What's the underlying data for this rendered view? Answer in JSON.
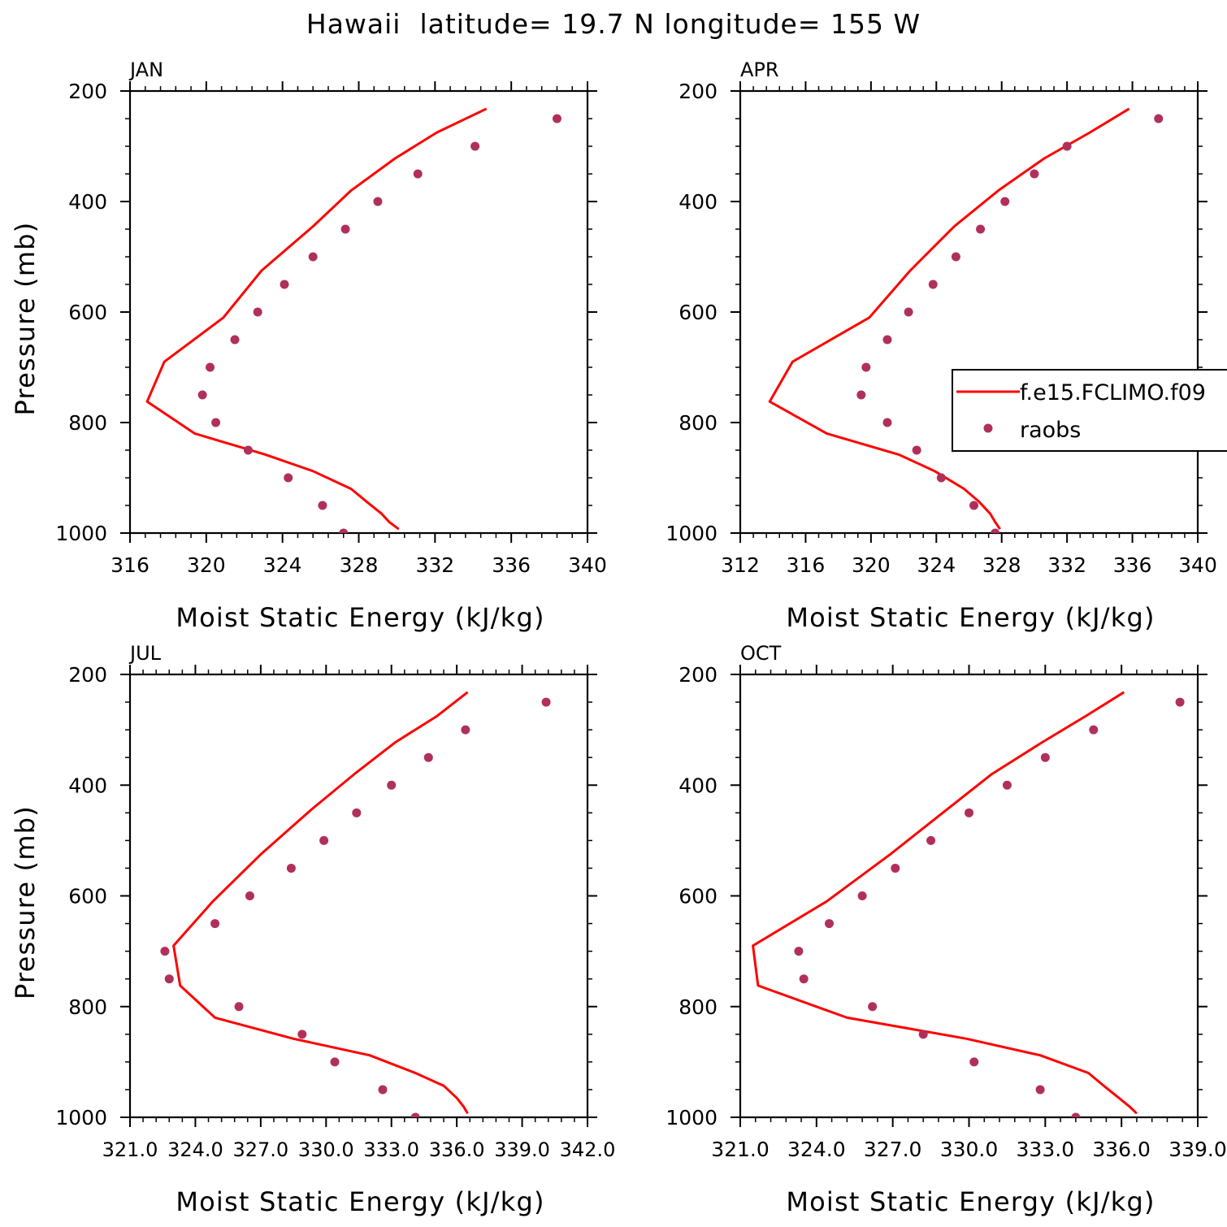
{
  "title": "Hawaii  latitude= 19.7 N longitude= 155 W",
  "colors": {
    "model": "#ff0000",
    "obs": "#b0305a",
    "axis": "#000000"
  },
  "legend": {
    "model": "f.e15.FCLIMO.f09",
    "obs": "raobs"
  },
  "chart_data": [
    {
      "type": "line",
      "panel": "JAN",
      "xlabel": "Moist Static Energy (kJ/kg)",
      "ylabel": "Pressure (mb)",
      "xlim": [
        316,
        340
      ],
      "ylim": [
        200,
        1000
      ],
      "xticks": [
        316,
        320,
        324,
        328,
        332,
        336,
        340
      ],
      "xtick_labels": [
        "316",
        "320",
        "324",
        "328",
        "332",
        "336",
        "340"
      ],
      "yticks": [
        200,
        400,
        600,
        800,
        1000
      ],
      "ytick_labels": [
        "200",
        "400",
        "600",
        "800",
        "1000"
      ],
      "series": [
        {
          "name": "f.e15.FCLIMO.f09",
          "style": "line",
          "x": [
            334.7,
            332.1,
            329.9,
            327.6,
            325.6,
            322.9,
            320.9,
            317.8,
            316.9,
            319.4,
            323.1,
            325.6,
            327.6,
            328.4,
            329.2,
            329.6,
            330.1
          ],
          "y": [
            232,
            275,
            322,
            380,
            445,
            525,
            610,
            690,
            762,
            820,
            858,
            888,
            920,
            943,
            965,
            980,
            993
          ]
        },
        {
          "name": "raobs",
          "style": "markers",
          "x": [
            338.4,
            334.1,
            331.1,
            329.0,
            327.3,
            325.6,
            324.1,
            322.7,
            321.5,
            320.2,
            319.8,
            320.5,
            322.2,
            324.3,
            326.1,
            327.2
          ],
          "y": [
            250,
            300,
            350,
            400,
            450,
            500,
            550,
            600,
            650,
            700,
            750,
            800,
            850,
            900,
            950,
            1000
          ]
        }
      ]
    },
    {
      "type": "line",
      "panel": "APR",
      "xlabel": "Moist Static Energy (kJ/kg)",
      "ylabel": "",
      "xlim": [
        312,
        340
      ],
      "ylim": [
        200,
        1000
      ],
      "xticks": [
        312,
        316,
        320,
        324,
        328,
        332,
        336,
        340
      ],
      "xtick_labels": [
        "312",
        "316",
        "320",
        "324",
        "328",
        "332",
        "336",
        "340"
      ],
      "yticks": [
        200,
        400,
        600,
        800,
        1000
      ],
      "ytick_labels": [
        "200",
        "400",
        "600",
        "800",
        "1000"
      ],
      "series": [
        {
          "name": "f.e15.FCLIMO.f09",
          "style": "line",
          "x": [
            335.8,
            333.4,
            330.6,
            327.8,
            325.1,
            322.4,
            319.9,
            315.2,
            313.8,
            317.3,
            321.7,
            323.9,
            325.7,
            326.6,
            327.3,
            327.6,
            327.9
          ],
          "y": [
            232,
            275,
            322,
            380,
            445,
            525,
            610,
            690,
            762,
            820,
            858,
            888,
            920,
            943,
            965,
            980,
            993
          ]
        },
        {
          "name": "raobs",
          "style": "markers",
          "x": [
            337.6,
            332.0,
            330.0,
            328.2,
            326.7,
            325.2,
            323.8,
            322.3,
            321.0,
            319.7,
            319.4,
            321.0,
            322.8,
            324.3,
            326.3,
            327.6
          ],
          "y": [
            250,
            300,
            350,
            400,
            450,
            500,
            550,
            600,
            650,
            700,
            750,
            800,
            850,
            900,
            950,
            1000
          ]
        }
      ]
    },
    {
      "type": "line",
      "panel": "JUL",
      "xlabel": "Moist Static Energy (kJ/kg)",
      "ylabel": "Pressure (mb)",
      "xlim": [
        321.0,
        342.0
      ],
      "ylim": [
        200,
        1000
      ],
      "xticks": [
        321,
        324,
        327,
        330,
        333,
        336,
        339,
        342
      ],
      "xtick_labels": [
        "321.0",
        "324.0",
        "327.0",
        "330.0",
        "333.0",
        "336.0",
        "339.0",
        "342.0"
      ],
      "ytick_overlay": "324.0327.0330.0333.0336.0339.0342.0",
      "yticks": [
        200,
        400,
        600,
        800,
        1000
      ],
      "ytick_labels": [
        "200",
        "400",
        "600",
        "800",
        "1000"
      ],
      "series": [
        {
          "name": "f.e15.FCLIMO.f09",
          "style": "line",
          "x": [
            336.5,
            335.1,
            333.2,
            331.3,
            329.3,
            327.0,
            324.8,
            323.0,
            323.3,
            324.9,
            328.5,
            332.0,
            334.1,
            335.4,
            336.0,
            336.3,
            336.5
          ],
          "y": [
            232,
            275,
            322,
            380,
            445,
            525,
            610,
            690,
            762,
            820,
            858,
            888,
            920,
            943,
            965,
            980,
            993
          ]
        },
        {
          "name": "raobs",
          "style": "markers",
          "x": [
            340.1,
            336.4,
            334.7,
            333.0,
            331.4,
            329.9,
            328.4,
            326.5,
            324.9,
            322.6,
            322.8,
            326.0,
            328.9,
            330.4,
            332.6,
            334.1
          ],
          "y": [
            250,
            300,
            350,
            400,
            450,
            500,
            550,
            600,
            650,
            700,
            750,
            800,
            850,
            900,
            950,
            1000
          ]
        }
      ]
    },
    {
      "type": "line",
      "panel": "OCT",
      "xlabel": "Moist Static Energy (kJ/kg)",
      "ylabel": "",
      "xlim": [
        321.0,
        339.0
      ],
      "ylim": [
        200,
        1000
      ],
      "xticks": [
        321,
        324,
        327,
        330,
        333,
        336,
        339
      ],
      "xtick_labels": [
        "321.0",
        "324.0",
        "327.0",
        "330.0",
        "333.0",
        "336.0",
        "339.0"
      ],
      "yticks": [
        200,
        400,
        600,
        800,
        1000
      ],
      "ytick_labels": [
        "200",
        "400",
        "600",
        "800",
        "1000"
      ],
      "series": [
        {
          "name": "f.e15.FCLIMO.f09",
          "style": "line",
          "x": [
            336.1,
            334.6,
            332.9,
            330.9,
            329.1,
            326.9,
            324.4,
            321.5,
            321.7,
            325.2,
            329.9,
            332.8,
            334.7,
            335.3,
            335.9,
            336.3,
            336.6
          ],
          "y": [
            232,
            275,
            322,
            380,
            445,
            525,
            610,
            690,
            762,
            820,
            858,
            888,
            920,
            943,
            965,
            980,
            993
          ]
        },
        {
          "name": "raobs",
          "style": "markers",
          "x": [
            338.3,
            334.9,
            333.0,
            331.5,
            330.0,
            328.5,
            327.1,
            325.8,
            324.5,
            323.3,
            323.5,
            326.2,
            328.2,
            330.2,
            332.8,
            334.2
          ],
          "y": [
            250,
            300,
            350,
            400,
            450,
            500,
            550,
            600,
            650,
            700,
            750,
            800,
            850,
            900,
            950,
            1000
          ]
        }
      ]
    }
  ]
}
